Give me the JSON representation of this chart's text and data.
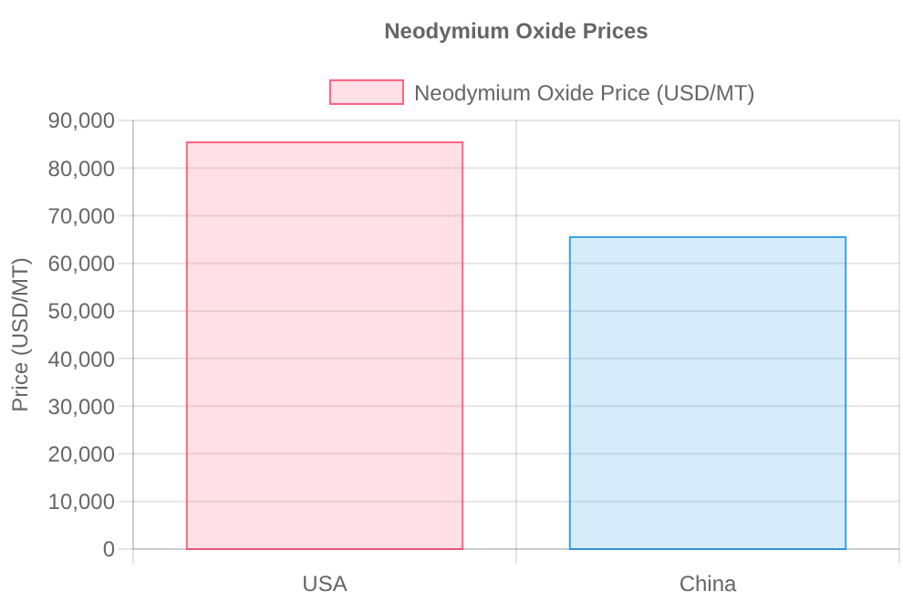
{
  "chart_data": {
    "type": "bar",
    "title": "Neodymium Oxide Prices",
    "ylabel": "Price (USD/MT)",
    "categories": [
      "USA",
      "China"
    ],
    "series": [
      {
        "name": "Neodymium Oxide Price (USD/MT)",
        "colors": [
          "#ff6384",
          "#36a2eb"
        ],
        "values": [
          85400,
          65500
        ]
      }
    ],
    "ylim": [
      0,
      90000
    ],
    "yticks": [
      {
        "value": 0,
        "label": "0"
      },
      {
        "value": 10000,
        "label": "10,000"
      },
      {
        "value": 20000,
        "label": "20,000"
      },
      {
        "value": 30000,
        "label": "30,000"
      },
      {
        "value": 40000,
        "label": "40,000"
      },
      {
        "value": 50000,
        "label": "50,000"
      },
      {
        "value": 60000,
        "label": "60,000"
      },
      {
        "value": 70000,
        "label": "70,000"
      },
      {
        "value": 80000,
        "label": "80,000"
      },
      {
        "value": 90000,
        "label": "90,000"
      }
    ],
    "grid": true,
    "legend": "top"
  }
}
